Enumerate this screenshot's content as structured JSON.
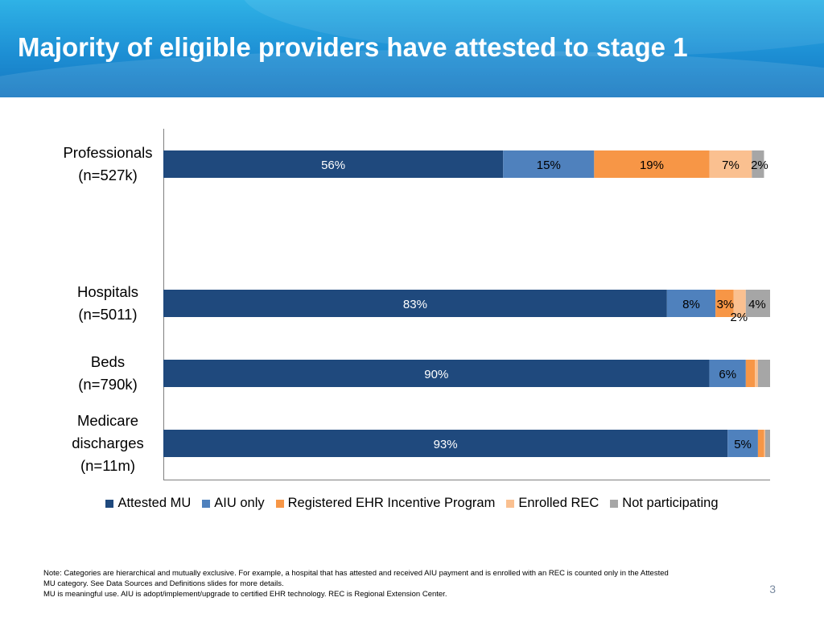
{
  "header": {
    "title": "Majority of eligible providers have attested to stage 1"
  },
  "chart_data": {
    "type": "bar",
    "orientation": "horizontal",
    "stacked": true,
    "percent": true,
    "xlim": [
      0,
      100
    ],
    "categories": [
      [
        "Professionals",
        "(n=527k)"
      ],
      [
        "Hospitals",
        "(n=5011)"
      ],
      [
        "Beds",
        "(n=790k)"
      ],
      [
        "Medicare",
        "discharges",
        "(n=11m)"
      ]
    ],
    "series": [
      {
        "name": "Attested MU",
        "color": "#1f497d",
        "values": [
          56,
          83,
          90,
          93
        ]
      },
      {
        "name": "AIU only",
        "color": "#4f81bd",
        "values": [
          15,
          8,
          6,
          5
        ]
      },
      {
        "name": "Registered EHR Incentive Program",
        "color": "#f79646",
        "values": [
          19,
          3,
          1.5,
          1
        ]
      },
      {
        "name": "Enrolled REC",
        "color": "#fac090",
        "values": [
          7,
          2,
          0.5,
          0.2
        ]
      },
      {
        "name": "Not participating",
        "color": "#a6a6a6",
        "values": [
          2,
          4,
          2,
          0.8
        ]
      }
    ],
    "data_labels": [
      [
        "56%",
        "15%",
        "19%",
        "7%",
        "2%"
      ],
      [
        "83%",
        "8%",
        "3%",
        "2%",
        "4%"
      ],
      [
        "90%",
        "6%",
        "",
        "",
        ""
      ],
      [
        "93%",
        "5%",
        "",
        "",
        ""
      ]
    ],
    "legend_position": "bottom",
    "grid": false
  },
  "footer": {
    "note_lines": [
      "Note: Categories are hierarchical and mutually exclusive. For example, a hospital that has attested and received AIU payment and is enrolled with an REC is counted only in the Attested",
      "MU category. See Data Sources and Definitions slides for more details.",
      "MU is meaningful use. AIU is adopt/implement/upgrade to certified EHR technology. REC is Regional Extension Center."
    ],
    "page_number": "3"
  }
}
